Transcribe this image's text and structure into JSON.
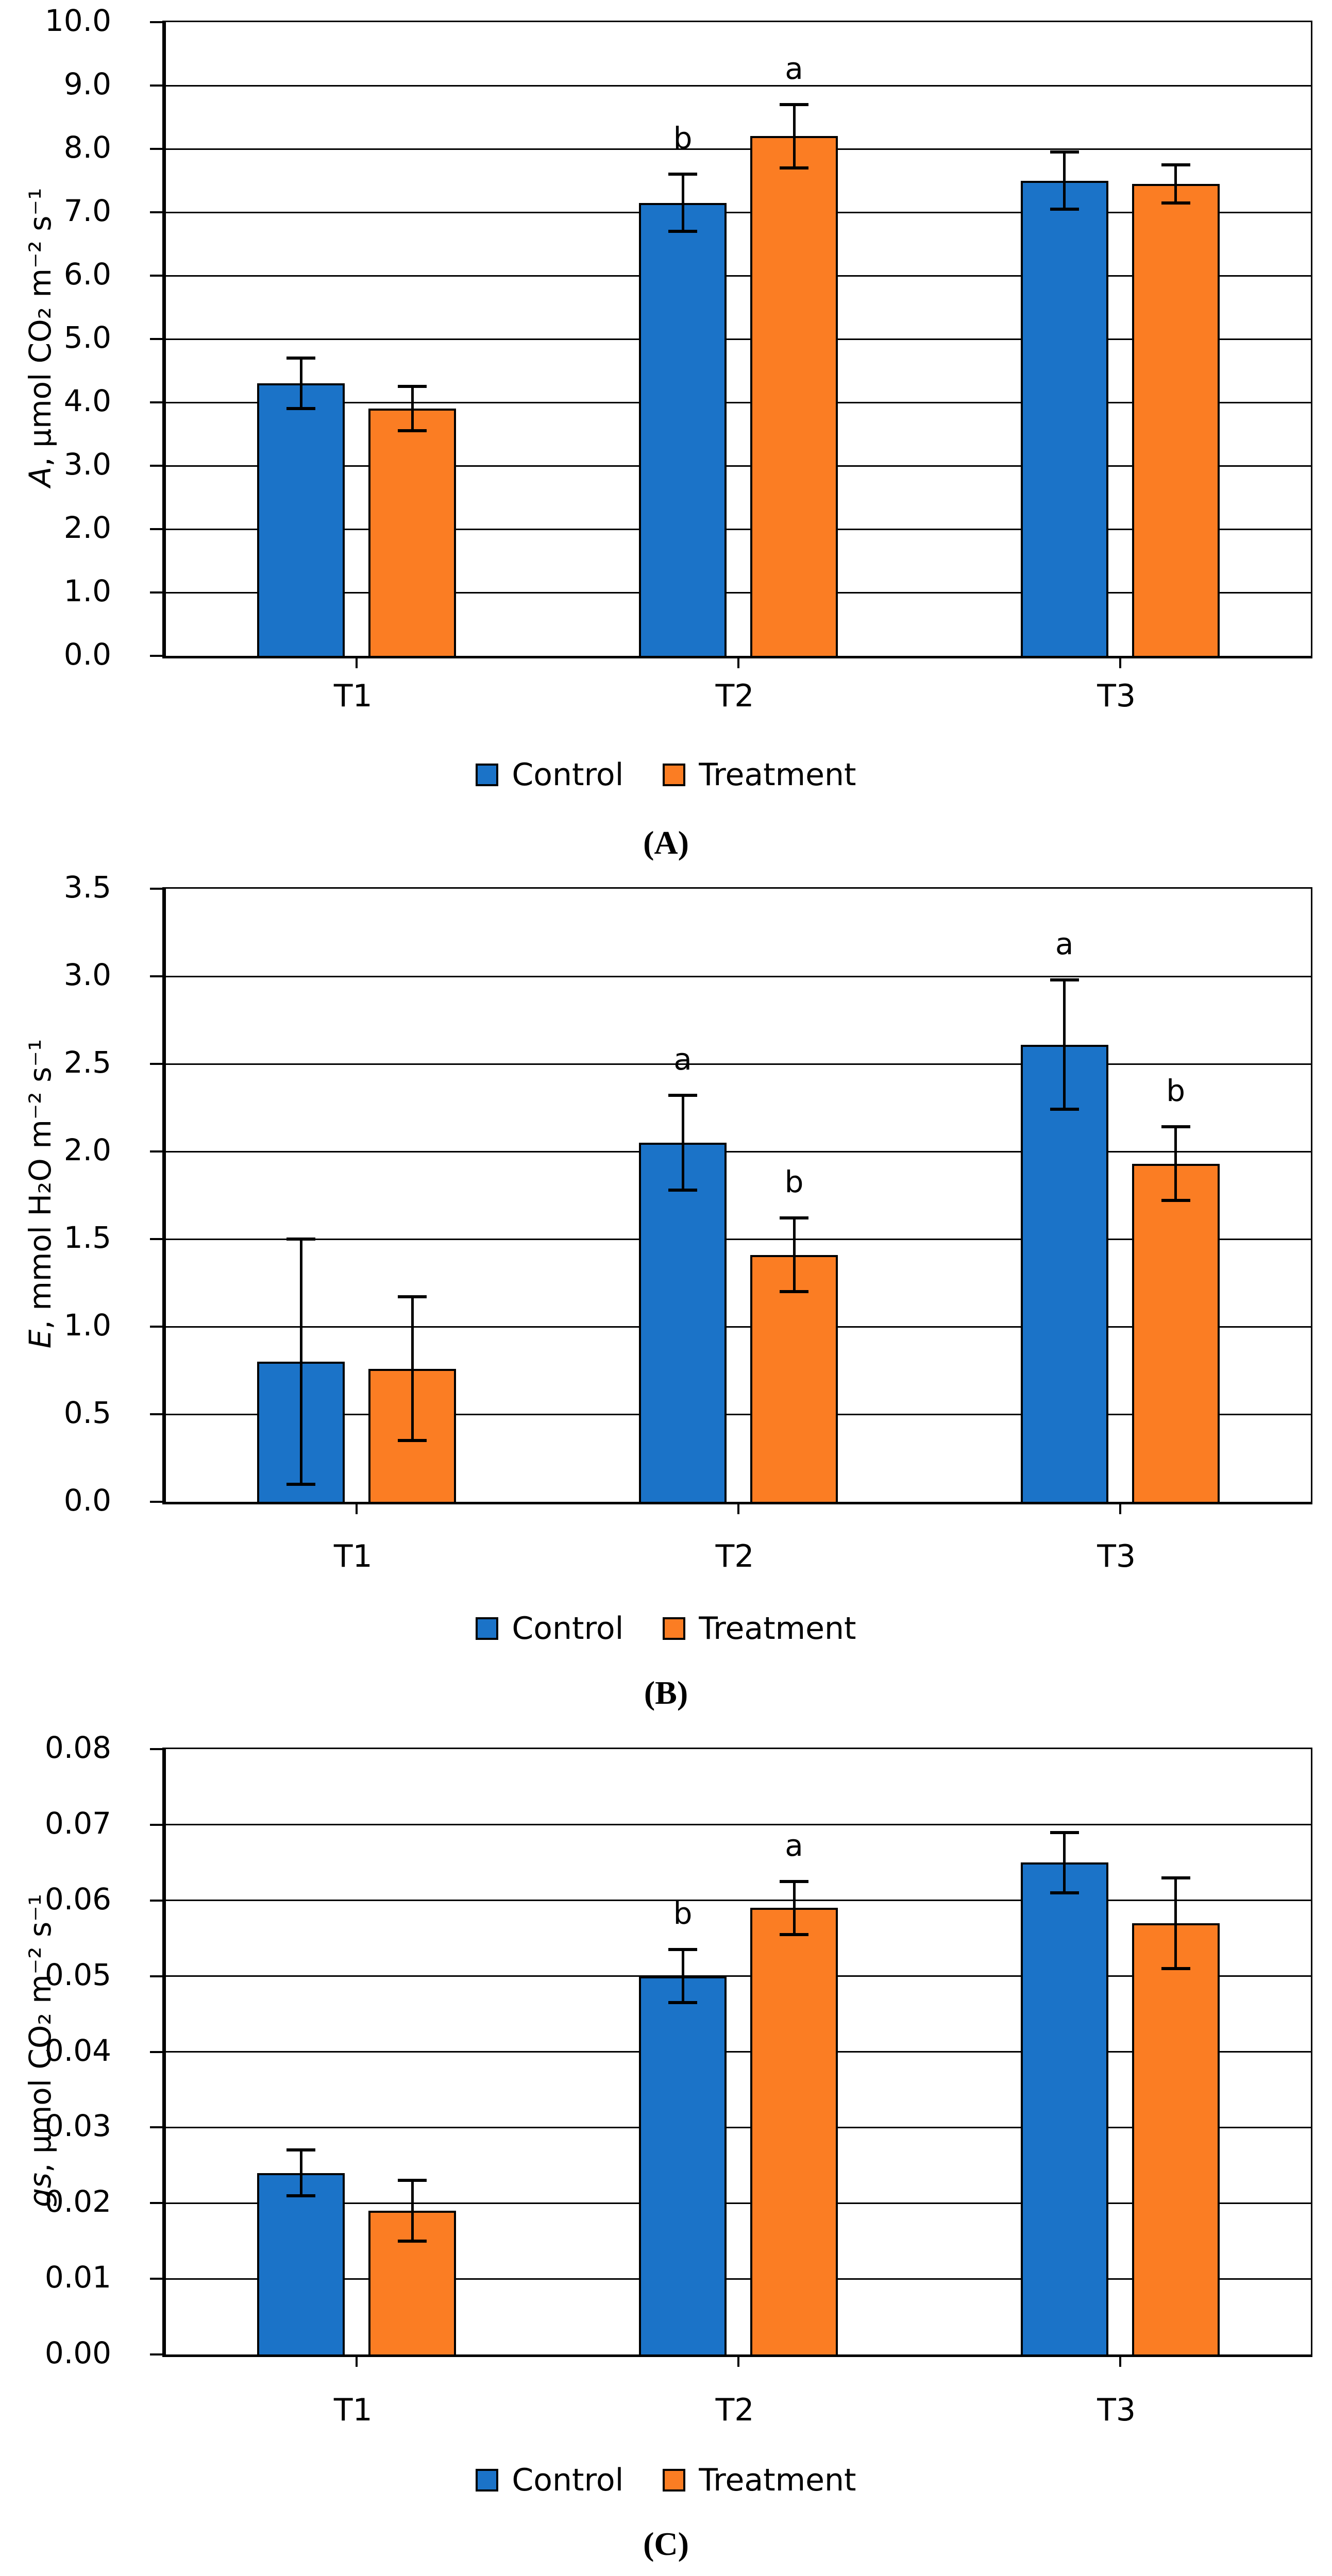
{
  "figure": {
    "background": "#ffffff",
    "legend": {
      "control": "Control",
      "treatment": "Treatment"
    },
    "colors": {
      "control": "#1B73C8",
      "treatment": "#FB7D23",
      "axis": "#000000",
      "grid": "#000000"
    }
  },
  "chart_data": [
    {
      "type": "bar",
      "panel_label": "(A)",
      "y_var": "A",
      "y_rest": ", μmol CO₂ m⁻² s⁻¹",
      "categories": [
        "T1",
        "T2",
        "T3"
      ],
      "ylim": [
        0,
        10
      ],
      "ytick_step": 1,
      "ytick_decimals": 1,
      "grid": true,
      "legend_position": "bottom",
      "series": [
        {
          "name": "Control",
          "values": [
            4.3,
            7.15,
            7.5
          ],
          "errors": [
            0.4,
            0.45,
            0.45
          ],
          "letters": [
            "",
            "b",
            ""
          ]
        },
        {
          "name": "Treatment",
          "values": [
            3.9,
            8.2,
            7.45
          ],
          "errors": [
            0.35,
            0.5,
            0.3
          ],
          "letters": [
            "",
            "a",
            ""
          ]
        }
      ]
    },
    {
      "type": "bar",
      "panel_label": "(B)",
      "y_var": "E",
      "y_rest": ", mmol H₂O m⁻² s⁻¹",
      "categories": [
        "T1",
        "T2",
        "T3"
      ],
      "ylim": [
        0,
        3.5
      ],
      "ytick_step": 0.5,
      "ytick_decimals": 1,
      "grid": true,
      "legend_position": "bottom",
      "series": [
        {
          "name": "Control",
          "values": [
            0.8,
            2.05,
            2.61
          ],
          "errors": [
            0.7,
            0.27,
            0.37
          ],
          "letters": [
            "",
            "a",
            "a"
          ]
        },
        {
          "name": "Treatment",
          "values": [
            0.76,
            1.41,
            1.93
          ],
          "errors": [
            0.41,
            0.21,
            0.21
          ],
          "letters": [
            "",
            "b",
            "b"
          ]
        }
      ]
    },
    {
      "type": "bar",
      "panel_label": "(C)",
      "y_var": "gs",
      "y_rest": ", μmol CO₂ m⁻² s⁻¹",
      "categories": [
        "T1",
        "T2",
        "T3"
      ],
      "ylim": [
        0,
        0.08
      ],
      "ytick_step": 0.01,
      "ytick_decimals": 2,
      "grid": true,
      "legend_position": "bottom",
      "series": [
        {
          "name": "Control",
          "values": [
            0.024,
            0.05,
            0.065
          ],
          "errors": [
            0.003,
            0.0035,
            0.004
          ],
          "letters": [
            "",
            "b",
            ""
          ]
        },
        {
          "name": "Treatment",
          "values": [
            0.019,
            0.059,
            0.057
          ],
          "errors": [
            0.004,
            0.0035,
            0.006
          ],
          "letters": [
            "",
            "a",
            ""
          ]
        }
      ]
    }
  ]
}
